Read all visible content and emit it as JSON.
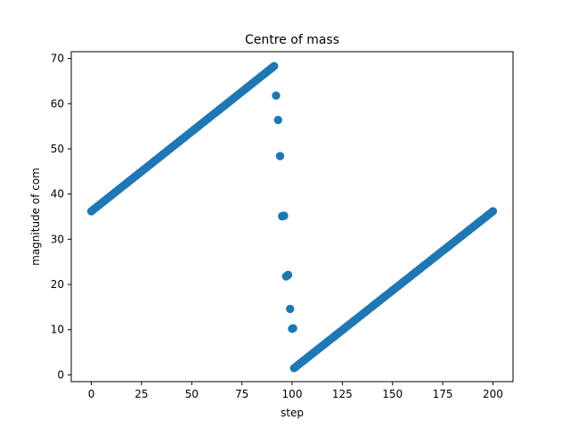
{
  "chart_data": {
    "type": "scatter",
    "title": "Centre of mass",
    "xlabel": "step",
    "ylabel": "magnitude of com",
    "xlim": [
      -10,
      210
    ],
    "ylim": [
      -1.5,
      71.5
    ],
    "xticks": [
      0,
      25,
      50,
      75,
      100,
      125,
      150,
      175,
      200
    ],
    "yticks": [
      0,
      10,
      20,
      30,
      40,
      50,
      60,
      70
    ],
    "grid": false,
    "color": "#1f77b4",
    "segments": [
      {
        "x_start": 0,
        "x_end": 91,
        "y_start": 36.2,
        "y_end": 68.3
      },
      {
        "x_start": 101,
        "x_end": 200,
        "y_start": 1.5,
        "y_end": 36.2
      }
    ],
    "points": [
      {
        "x": 92,
        "y": 61.8
      },
      {
        "x": 93,
        "y": 56.4
      },
      {
        "x": 94,
        "y": 48.4
      },
      {
        "x": 95,
        "y": 35.1
      },
      {
        "x": 96,
        "y": 35.2
      },
      {
        "x": 97,
        "y": 21.8
      },
      {
        "x": 98,
        "y": 22.1
      },
      {
        "x": 99,
        "y": 14.6
      },
      {
        "x": 100,
        "y": 10.2
      },
      {
        "x": 100.5,
        "y": 10.3
      }
    ]
  }
}
